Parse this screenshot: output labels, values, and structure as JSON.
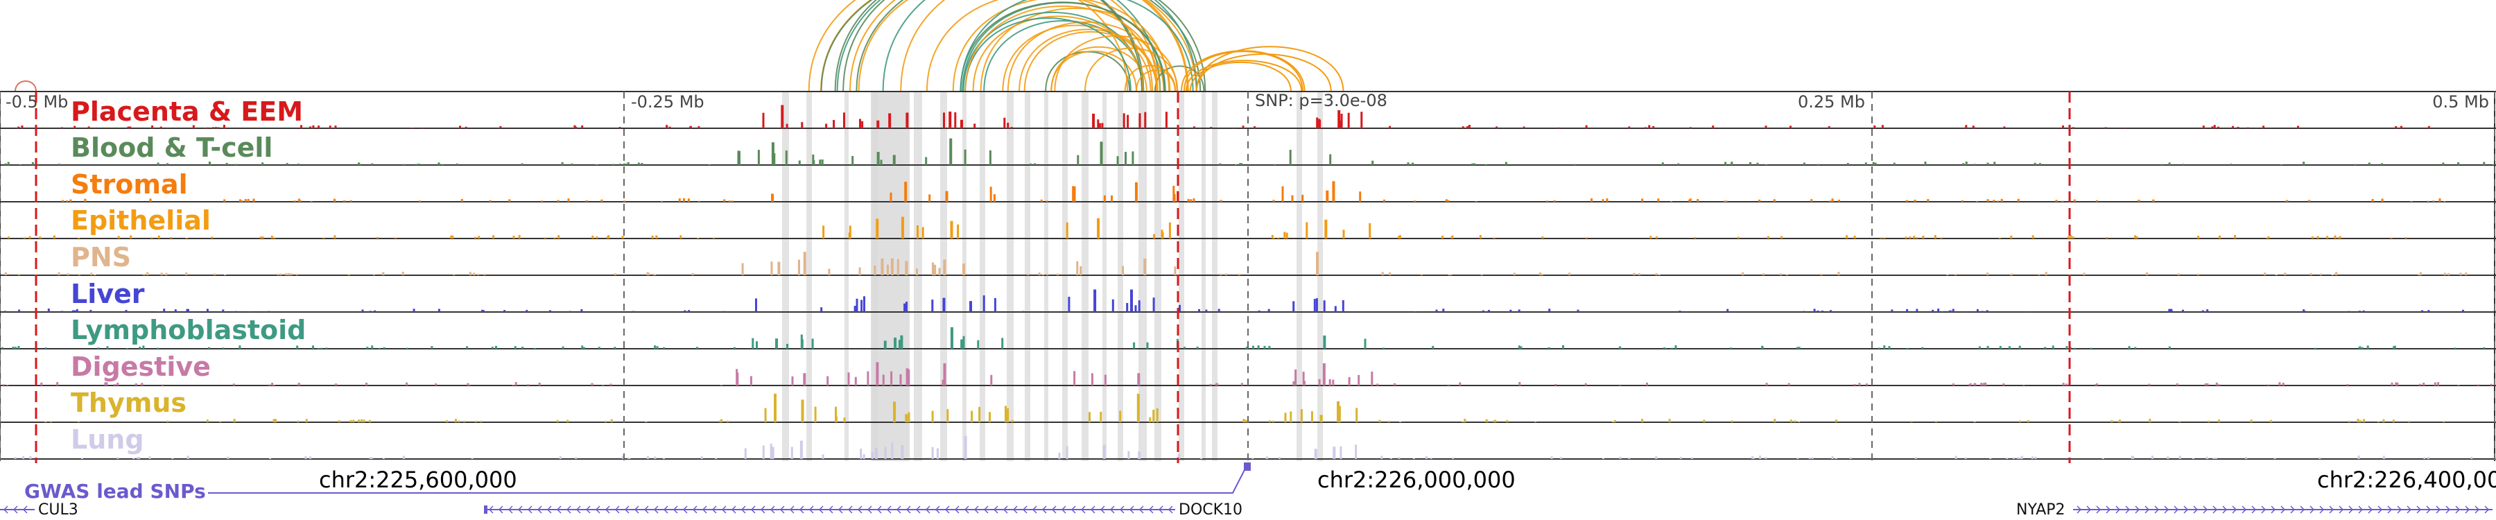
{
  "scale_labels": [
    "-0.5 Mb",
    "-0.25 Mb",
    "SNP: p=3.0e-08",
    "0.25 Mb",
    "0.5 Mb"
  ],
  "tracks": [
    {
      "label": "Placenta & EEM",
      "color": "#d7191c"
    },
    {
      "label": "Blood & T-cell",
      "color": "#5a8a5a"
    },
    {
      "label": "Stromal",
      "color": "#f57c0e"
    },
    {
      "label": "Epithelial",
      "color": "#f39c12"
    },
    {
      "label": "PNS",
      "color": "#e0b48c"
    },
    {
      "label": "Liver",
      "color": "#4545d6"
    },
    {
      "label": "Lymphoblastoid",
      "color": "#3e9a82"
    },
    {
      "label": "Digestive",
      "color": "#c77aa6"
    },
    {
      "label": "Thymus",
      "color": "#d9b42c"
    },
    {
      "label": "Lung",
      "color": "#cfcbe8"
    }
  ],
  "coordinates": [
    "chr2:225,600,000",
    "chr2:226,000,000",
    "chr2:226,400,000"
  ],
  "gwas": {
    "label": "GWAS lead SNPs",
    "color": "#6a5acd"
  },
  "genes": [
    "CUL3",
    "DOCK10",
    "NYAP2"
  ],
  "colors": {
    "loop_orange": "#f39c12",
    "loop_green": "#5a8a5a",
    "loop_teal": "#3e9a82",
    "snp_line": "#d7191c",
    "highlight": "#d9d9d9",
    "gene": "#6a5acd"
  }
}
